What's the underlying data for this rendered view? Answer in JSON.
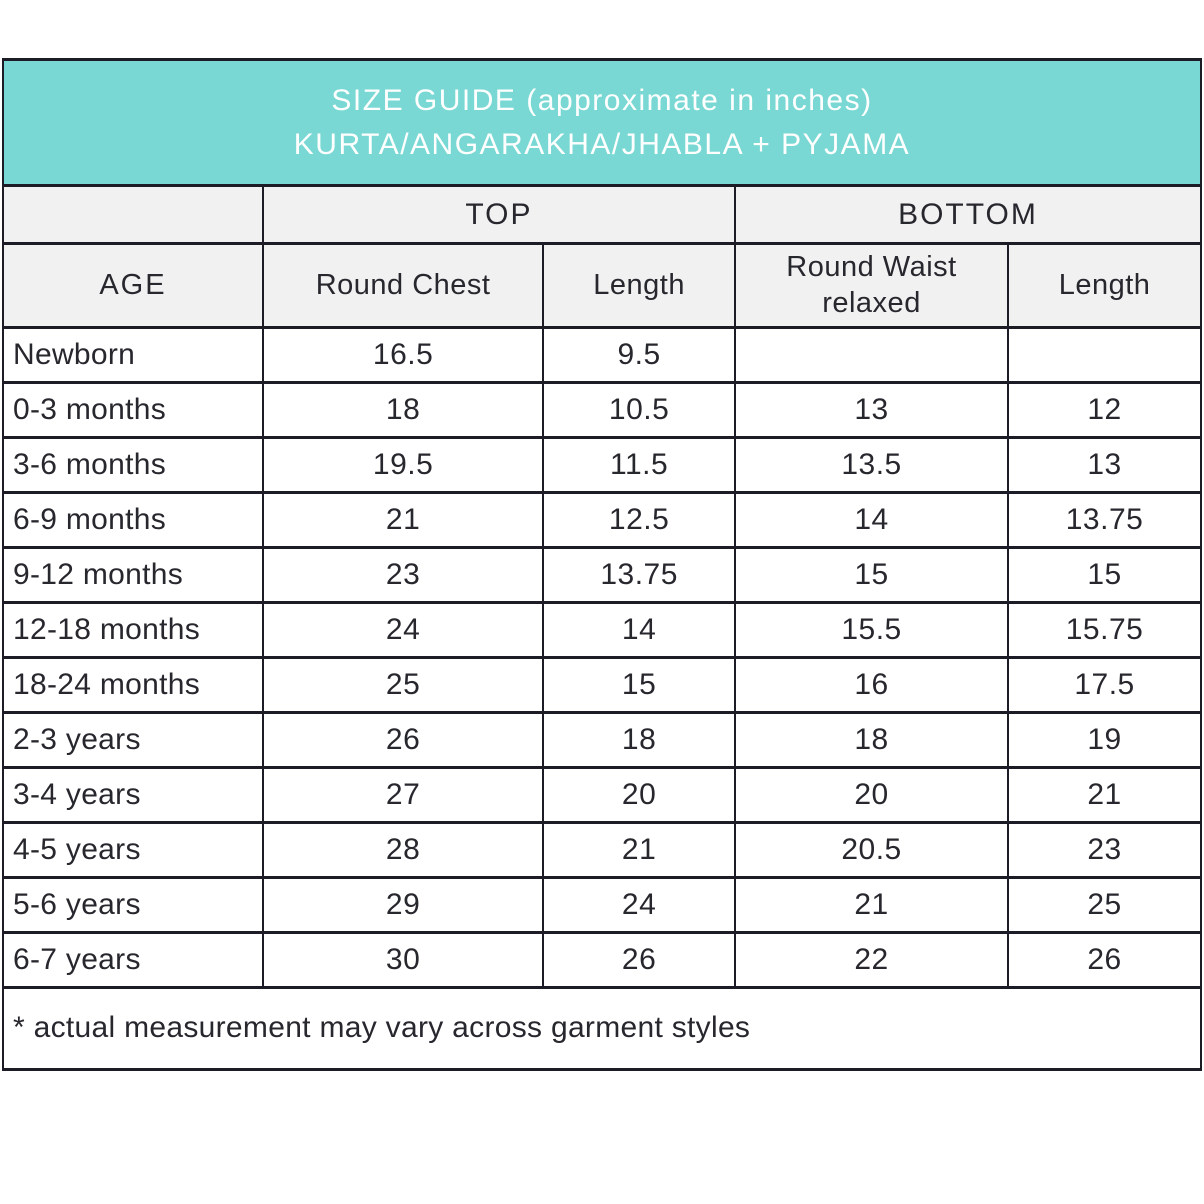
{
  "title": {
    "line1": "SIZE GUIDE (approximate in inches)",
    "line2": "KURTA/ANGARAKHA/JHABLA + PYJAMA"
  },
  "table": {
    "group_headers": {
      "top": "TOP",
      "bottom": "BOTTOM"
    },
    "column_headers": [
      "AGE",
      "Round Chest",
      "Length",
      "Round Waist relaxed",
      "Length"
    ],
    "rows": [
      {
        "age": "Newborn",
        "values": [
          "16.5",
          "9.5",
          "",
          ""
        ]
      },
      {
        "age": "0-3 months",
        "values": [
          "18",
          "10.5",
          "13",
          "12"
        ]
      },
      {
        "age": "3-6 months",
        "values": [
          "19.5",
          "11.5",
          "13.5",
          "13"
        ]
      },
      {
        "age": "6-9 months",
        "values": [
          "21",
          "12.5",
          "14",
          "13.75"
        ]
      },
      {
        "age": "9-12 months",
        "values": [
          "23",
          "13.75",
          "15",
          "15"
        ]
      },
      {
        "age": "12-18 months",
        "values": [
          "24",
          "14",
          "15.5",
          "15.75"
        ]
      },
      {
        "age": "18-24 months",
        "values": [
          "25",
          "15",
          "16",
          "17.5"
        ]
      },
      {
        "age": "2-3 years",
        "values": [
          "26",
          "18",
          "18",
          "19"
        ]
      },
      {
        "age": "3-4 years",
        "values": [
          "27",
          "20",
          "20",
          "21"
        ]
      },
      {
        "age": "4-5 years",
        "values": [
          "28",
          "21",
          "20.5",
          "23"
        ]
      },
      {
        "age": "5-6 years",
        "values": [
          "29",
          "24",
          "21",
          "25"
        ]
      },
      {
        "age": "6-7 years",
        "values": [
          "30",
          "26",
          "22",
          "26"
        ]
      }
    ]
  },
  "footnote": "* actual measurement may vary across garment styles",
  "colors": {
    "title_bar_teal": "#79d8d3",
    "header_gray": "#f1f1f1",
    "border_dark": "#1c1c26",
    "text_dark": "#27272e",
    "title_text": "#ffffff"
  },
  "chart_data": {
    "type": "table",
    "title": "SIZE GUIDE (approximate in inches) KURTA/ANGARAKHA/JHABLA + PYJAMA",
    "column_groups": [
      "",
      "TOP",
      "TOP",
      "BOTTOM",
      "BOTTOM"
    ],
    "columns": [
      "AGE",
      "Round Chest",
      "Length",
      "Round Waist relaxed",
      "Length"
    ],
    "rows": [
      [
        "Newborn",
        16.5,
        9.5,
        null,
        null
      ],
      [
        "0-3 months",
        18,
        10.5,
        13,
        12
      ],
      [
        "3-6 months",
        19.5,
        11.5,
        13.5,
        13
      ],
      [
        "6-9 months",
        21,
        12.5,
        14,
        13.75
      ],
      [
        "9-12 months",
        23,
        13.75,
        15,
        15
      ],
      [
        "12-18 months",
        24,
        14,
        15.5,
        15.75
      ],
      [
        "18-24 months",
        25,
        15,
        16,
        17.5
      ],
      [
        "2-3 years",
        26,
        18,
        18,
        19
      ],
      [
        "3-4 years",
        27,
        20,
        20,
        21
      ],
      [
        "4-5 years",
        28,
        21,
        20.5,
        23
      ],
      [
        "5-6 years",
        29,
        24,
        21,
        25
      ],
      [
        "6-7 years",
        30,
        26,
        22,
        26
      ]
    ],
    "footnote": "* actual measurement may vary across garment styles"
  }
}
